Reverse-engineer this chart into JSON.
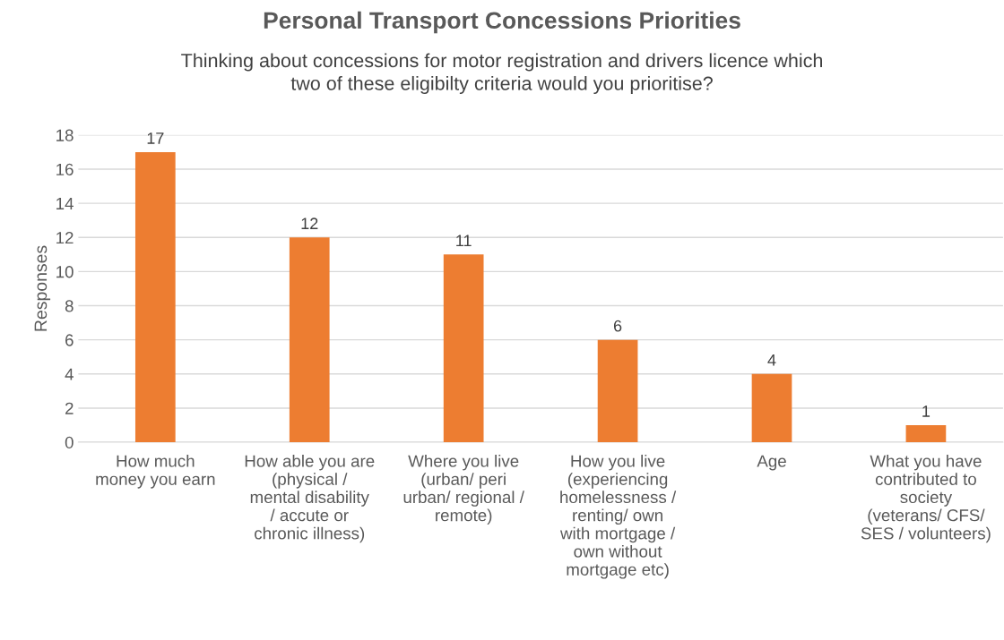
{
  "chart_data": {
    "type": "bar",
    "title": "Personal Transport Concessions Priorities",
    "subtitle": "Thinking about concessions for motor registration and drivers licence which\ntwo of these eligibilty criteria would you prioritise?",
    "ylabel": "Responses",
    "categories": [
      "How much\nmoney you earn",
      "How able you are\n(physical /\nmental disability\n/ accute or\nchronic illness)",
      "Where you live\n(urban/ peri\nurban/ regional /\nremote)",
      "How you live\n(experiencing\nhomelessness /\nrenting/ own\nwith mortgage /\nown without\nmortgage etc)",
      "Age",
      "What you have\ncontributed to\nsociety\n(veterans/ CFS/\nSES / volunteers)"
    ],
    "values": [
      17,
      12,
      11,
      6,
      4,
      1
    ],
    "color": "#ed7d31",
    "ylim": [
      0,
      18
    ],
    "yticks": [
      0,
      2,
      4,
      6,
      8,
      10,
      12,
      14,
      16,
      18
    ],
    "grid": "y",
    "data_labels": true,
    "legend": false
  }
}
